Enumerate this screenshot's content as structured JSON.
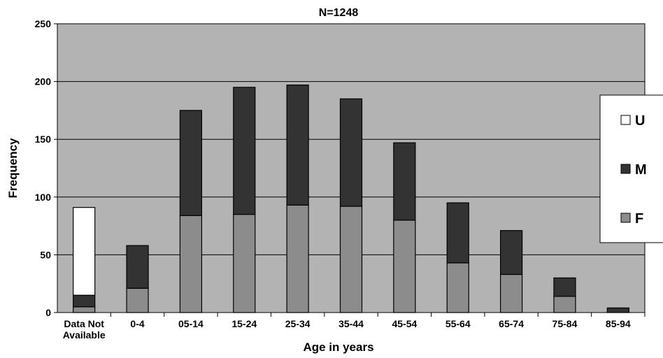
{
  "chart_data": {
    "type": "bar",
    "stacked": true,
    "title": "N=1248",
    "xlabel": "Age in years",
    "ylabel": "Frequency",
    "ylim": [
      0,
      250
    ],
    "yticks": [
      0,
      50,
      100,
      150,
      200,
      250
    ],
    "grid": true,
    "legend_placement": "right",
    "categories": [
      [
        "Data Not",
        "Available"
      ],
      [
        "0-4"
      ],
      [
        "05-14"
      ],
      [
        "15-24"
      ],
      [
        "25-34"
      ],
      [
        "35-44"
      ],
      [
        "45-54"
      ],
      [
        "55-64"
      ],
      [
        "65-74"
      ],
      [
        "75-84"
      ],
      [
        "85-94"
      ]
    ],
    "series": [
      {
        "name": "F",
        "color": "#8c8c8c",
        "values": [
          5,
          21,
          84,
          85,
          93,
          92,
          80,
          43,
          33,
          14,
          0
        ]
      },
      {
        "name": "M",
        "color": "#333333",
        "values": [
          10,
          37,
          91,
          110,
          104,
          93,
          67,
          52,
          38,
          16,
          4
        ]
      },
      {
        "name": "U",
        "color": "#ffffff",
        "values": [
          76,
          0,
          0,
          0,
          0,
          0,
          0,
          0,
          0,
          0,
          0
        ]
      }
    ],
    "legend_order": [
      "U",
      "M",
      "F"
    ],
    "plot_background": "#b3b3b3"
  }
}
